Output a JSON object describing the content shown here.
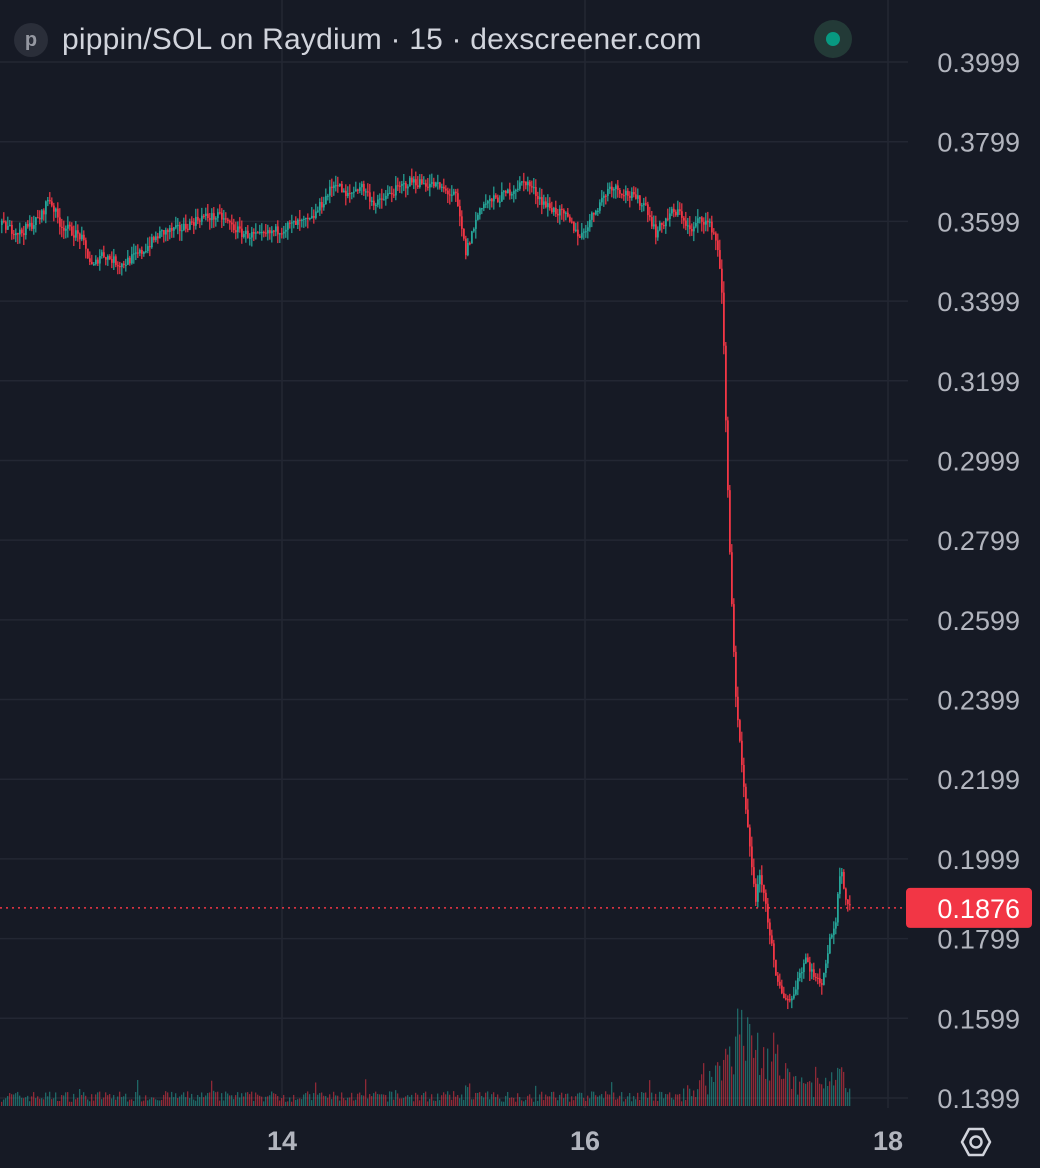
{
  "header": {
    "logo_letter": "p",
    "title": "pippin/SOL on Raydium · 15 · dexscreener.com",
    "status_color": "#089981"
  },
  "colors": {
    "background": "#161a25",
    "grid": "#232733",
    "up": "#26a69a",
    "down": "#f23645",
    "text": "#b2b5be",
    "last_price_label": "#f23645"
  },
  "icons": [
    "logo-icon",
    "status-dot-icon",
    "settings-icon"
  ],
  "chart_data": {
    "type": "candlestick",
    "title": "pippin/SOL on Raydium · 15",
    "interval": "15",
    "y_ticks": [
      "0.3999",
      "0.3799",
      "0.3599",
      "0.3399",
      "0.3199",
      "0.2999",
      "0.2799",
      "0.2599",
      "0.2399",
      "0.2199",
      "0.1999",
      "0.1799",
      "0.1599",
      "0.1399"
    ],
    "x_ticks": [
      "14",
      "16",
      "18"
    ],
    "ylim": [
      0.1399,
      0.3999
    ],
    "last_price": 0.1876,
    "last_price_label": "0.1876",
    "grid": true,
    "price_keypoints": [
      [
        0,
        0.359
      ],
      [
        20,
        0.357
      ],
      [
        40,
        0.361
      ],
      [
        48,
        0.366
      ],
      [
        60,
        0.359
      ],
      [
        80,
        0.356
      ],
      [
        92,
        0.348
      ],
      [
        100,
        0.352
      ],
      [
        120,
        0.349
      ],
      [
        140,
        0.352
      ],
      [
        160,
        0.357
      ],
      [
        180,
        0.358
      ],
      [
        200,
        0.361
      ],
      [
        220,
        0.361
      ],
      [
        240,
        0.357
      ],
      [
        260,
        0.356
      ],
      [
        290,
        0.359
      ],
      [
        310,
        0.36
      ],
      [
        320,
        0.364
      ],
      [
        335,
        0.37
      ],
      [
        345,
        0.366
      ],
      [
        360,
        0.369
      ],
      [
        375,
        0.364
      ],
      [
        390,
        0.367
      ],
      [
        410,
        0.37
      ],
      [
        435,
        0.369
      ],
      [
        455,
        0.366
      ],
      [
        465,
        0.352
      ],
      [
        480,
        0.364
      ],
      [
        500,
        0.366
      ],
      [
        525,
        0.37
      ],
      [
        545,
        0.364
      ],
      [
        565,
        0.361
      ],
      [
        580,
        0.356
      ],
      [
        595,
        0.363
      ],
      [
        610,
        0.369
      ],
      [
        625,
        0.367
      ],
      [
        645,
        0.364
      ],
      [
        655,
        0.357
      ],
      [
        670,
        0.362
      ],
      [
        680,
        0.362
      ],
      [
        690,
        0.357
      ],
      [
        700,
        0.361
      ],
      [
        712,
        0.358
      ],
      [
        718,
        0.352
      ],
      [
        722,
        0.338
      ],
      [
        726,
        0.3
      ],
      [
        730,
        0.27
      ],
      [
        735,
        0.24
      ],
      [
        740,
        0.226
      ],
      [
        745,
        0.212
      ],
      [
        750,
        0.2
      ],
      [
        755,
        0.19
      ],
      [
        760,
        0.196
      ],
      [
        765,
        0.188
      ],
      [
        770,
        0.18
      ],
      [
        775,
        0.17
      ],
      [
        782,
        0.166
      ],
      [
        790,
        0.164
      ],
      [
        797,
        0.17
      ],
      [
        805,
        0.175
      ],
      [
        812,
        0.171
      ],
      [
        820,
        0.168
      ],
      [
        828,
        0.178
      ],
      [
        835,
        0.185
      ],
      [
        840,
        0.199
      ],
      [
        845,
        0.19
      ],
      [
        850,
        0.1876
      ]
    ],
    "volume_keypoints": [
      [
        0,
        0.04
      ],
      [
        455,
        0.04
      ],
      [
        465,
        0.06
      ],
      [
        480,
        0.04
      ],
      [
        680,
        0.04
      ],
      [
        700,
        0.09
      ],
      [
        712,
        0.12
      ],
      [
        722,
        0.18
      ],
      [
        730,
        0.24
      ],
      [
        738,
        0.3
      ],
      [
        748,
        0.26
      ],
      [
        760,
        0.22
      ],
      [
        775,
        0.15
      ],
      [
        790,
        0.1
      ],
      [
        810,
        0.08
      ],
      [
        830,
        0.09
      ],
      [
        840,
        0.12
      ],
      [
        850,
        0.06
      ]
    ],
    "x_span": 850,
    "candle_spacing": 2,
    "volume_max_ratio": 0.3
  }
}
